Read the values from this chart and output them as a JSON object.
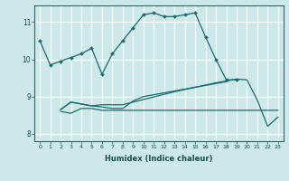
{
  "xlabel": "Humidex (Indice chaleur)",
  "bg_color": "#cce8e8",
  "grid_color": "#ffffff",
  "line_color": "#1a6b6b",
  "xlim": [
    -0.5,
    23.5
  ],
  "ylim": [
    7.8,
    11.45
  ],
  "xticks": [
    0,
    1,
    2,
    3,
    4,
    5,
    6,
    7,
    8,
    9,
    10,
    11,
    12,
    13,
    14,
    15,
    16,
    17,
    18,
    19,
    20,
    21,
    22,
    23
  ],
  "yticks": [
    8,
    9,
    10,
    11
  ],
  "marker_lines": [
    {
      "x": [
        0,
        1,
        2,
        3,
        4,
        5,
        6,
        7,
        8,
        9,
        10,
        11,
        12,
        13,
        14,
        15,
        16,
        17,
        18,
        19
      ],
      "y": [
        10.5,
        9.85,
        9.95,
        10.05,
        10.15,
        10.3,
        9.6,
        10.15,
        10.5,
        10.85,
        11.2,
        11.25,
        11.15,
        11.15,
        11.2,
        11.25,
        10.6,
        10.0,
        9.45,
        9.45
      ],
      "has_markers": true
    },
    {
      "x": [
        2,
        3,
        4,
        5,
        6,
        7,
        8,
        9,
        10,
        11,
        12,
        13,
        14,
        15,
        16,
        17,
        18,
        19,
        20,
        21,
        22,
        23
      ],
      "y": [
        8.65,
        8.85,
        8.8,
        8.75,
        8.78,
        8.78,
        8.78,
        8.85,
        8.92,
        8.99,
        9.06,
        9.13,
        9.19,
        9.25,
        9.31,
        9.37,
        9.42,
        9.47,
        9.45,
        8.9,
        8.2,
        8.45
      ],
      "has_markers": false
    },
    {
      "x": [
        2,
        3,
        4,
        5,
        6,
        7,
        8,
        9,
        10,
        11,
        12,
        13,
        14,
        15,
        16,
        17,
        18
      ],
      "y": [
        8.65,
        8.85,
        8.8,
        8.75,
        8.72,
        8.68,
        8.68,
        8.88,
        9.0,
        9.05,
        9.1,
        9.15,
        9.2,
        9.25,
        9.3,
        9.35,
        9.4
      ],
      "has_markers": false
    },
    {
      "x": [
        2,
        3,
        4,
        5,
        6,
        7,
        8,
        9,
        10,
        11,
        12,
        13,
        14,
        15,
        16,
        17,
        18,
        19,
        20,
        21,
        22,
        23
      ],
      "y": [
        8.6,
        8.55,
        8.68,
        8.68,
        8.63,
        8.63,
        8.63,
        8.63,
        8.63,
        8.63,
        8.63,
        8.63,
        8.63,
        8.63,
        8.63,
        8.63,
        8.63,
        8.63,
        8.63,
        8.63,
        8.63,
        8.63
      ],
      "has_markers": false
    }
  ]
}
